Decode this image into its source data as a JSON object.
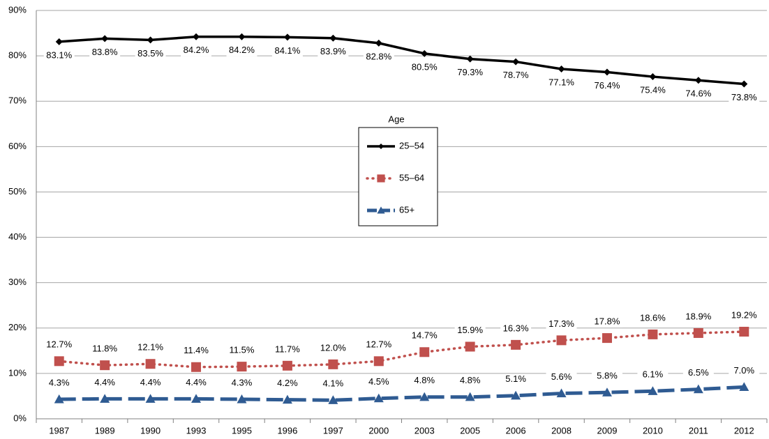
{
  "chart_data": {
    "type": "line",
    "categories": [
      "1987",
      "1989",
      "1990",
      "1993",
      "1995",
      "1996",
      "1997",
      "2000",
      "2003",
      "2005",
      "2006",
      "2008",
      "2009",
      "2010",
      "2011",
      "2012"
    ],
    "ylim": [
      0,
      90
    ],
    "yticks": [
      {
        "value": 0,
        "label": "0%"
      },
      {
        "value": 10,
        "label": "10%"
      },
      {
        "value": 20,
        "label": "20%"
      },
      {
        "value": 30,
        "label": "30%"
      },
      {
        "value": 40,
        "label": "40%"
      },
      {
        "value": 50,
        "label": "50%"
      },
      {
        "value": 60,
        "label": "60%"
      },
      {
        "value": 70,
        "label": "70%"
      },
      {
        "value": 80,
        "label": "80%"
      },
      {
        "value": 90,
        "label": "90%"
      }
    ],
    "grid": true,
    "legend_title": "Age",
    "series": [
      {
        "name": "25–54",
        "color": "#000000",
        "line_style": "solid",
        "marker": "diamond",
        "label_position": "below",
        "values": [
          83.1,
          83.8,
          83.5,
          84.2,
          84.2,
          84.1,
          83.9,
          82.8,
          80.5,
          79.3,
          78.7,
          77.1,
          76.4,
          75.4,
          74.6,
          73.8
        ],
        "value_labels": [
          "83.1%",
          "83.8%",
          "83.5%",
          "84.2%",
          "84.2%",
          "84.1%",
          "83.9%",
          "82.8%",
          "80.5%",
          "79.3%",
          "78.7%",
          "77.1%",
          "76.4%",
          "75.4%",
          "74.6%",
          "73.8%"
        ]
      },
      {
        "name": "55–64",
        "color": "#c0504d",
        "line_style": "dotted",
        "marker": "square",
        "label_position": "above",
        "values": [
          12.7,
          11.8,
          12.1,
          11.4,
          11.5,
          11.7,
          12.0,
          12.7,
          14.7,
          15.9,
          16.3,
          17.3,
          17.8,
          18.6,
          18.9,
          19.2
        ],
        "value_labels": [
          "12.7%",
          "11.8%",
          "12.1%",
          "11.4%",
          "11.5%",
          "11.7%",
          "12.0%",
          "12.7%",
          "14.7%",
          "15.9%",
          "16.3%",
          "17.3%",
          "17.8%",
          "18.6%",
          "18.9%",
          "19.2%"
        ]
      },
      {
        "name": "65+",
        "color": "#2f5b92",
        "line_style": "dashed",
        "marker": "triangle",
        "label_position": "above",
        "values": [
          4.3,
          4.4,
          4.4,
          4.4,
          4.3,
          4.2,
          4.1,
          4.5,
          4.8,
          4.8,
          5.1,
          5.6,
          5.8,
          6.1,
          6.5,
          7.0
        ],
        "value_labels": [
          "4.3%",
          "4.4%",
          "4.4%",
          "4.4%",
          "4.3%",
          "4.2%",
          "4.1%",
          "4.5%",
          "4.8%",
          "4.8%",
          "5.1%",
          "5.6%",
          "5.8%",
          "6.1%",
          "6.5%",
          "7.0%"
        ]
      }
    ]
  }
}
